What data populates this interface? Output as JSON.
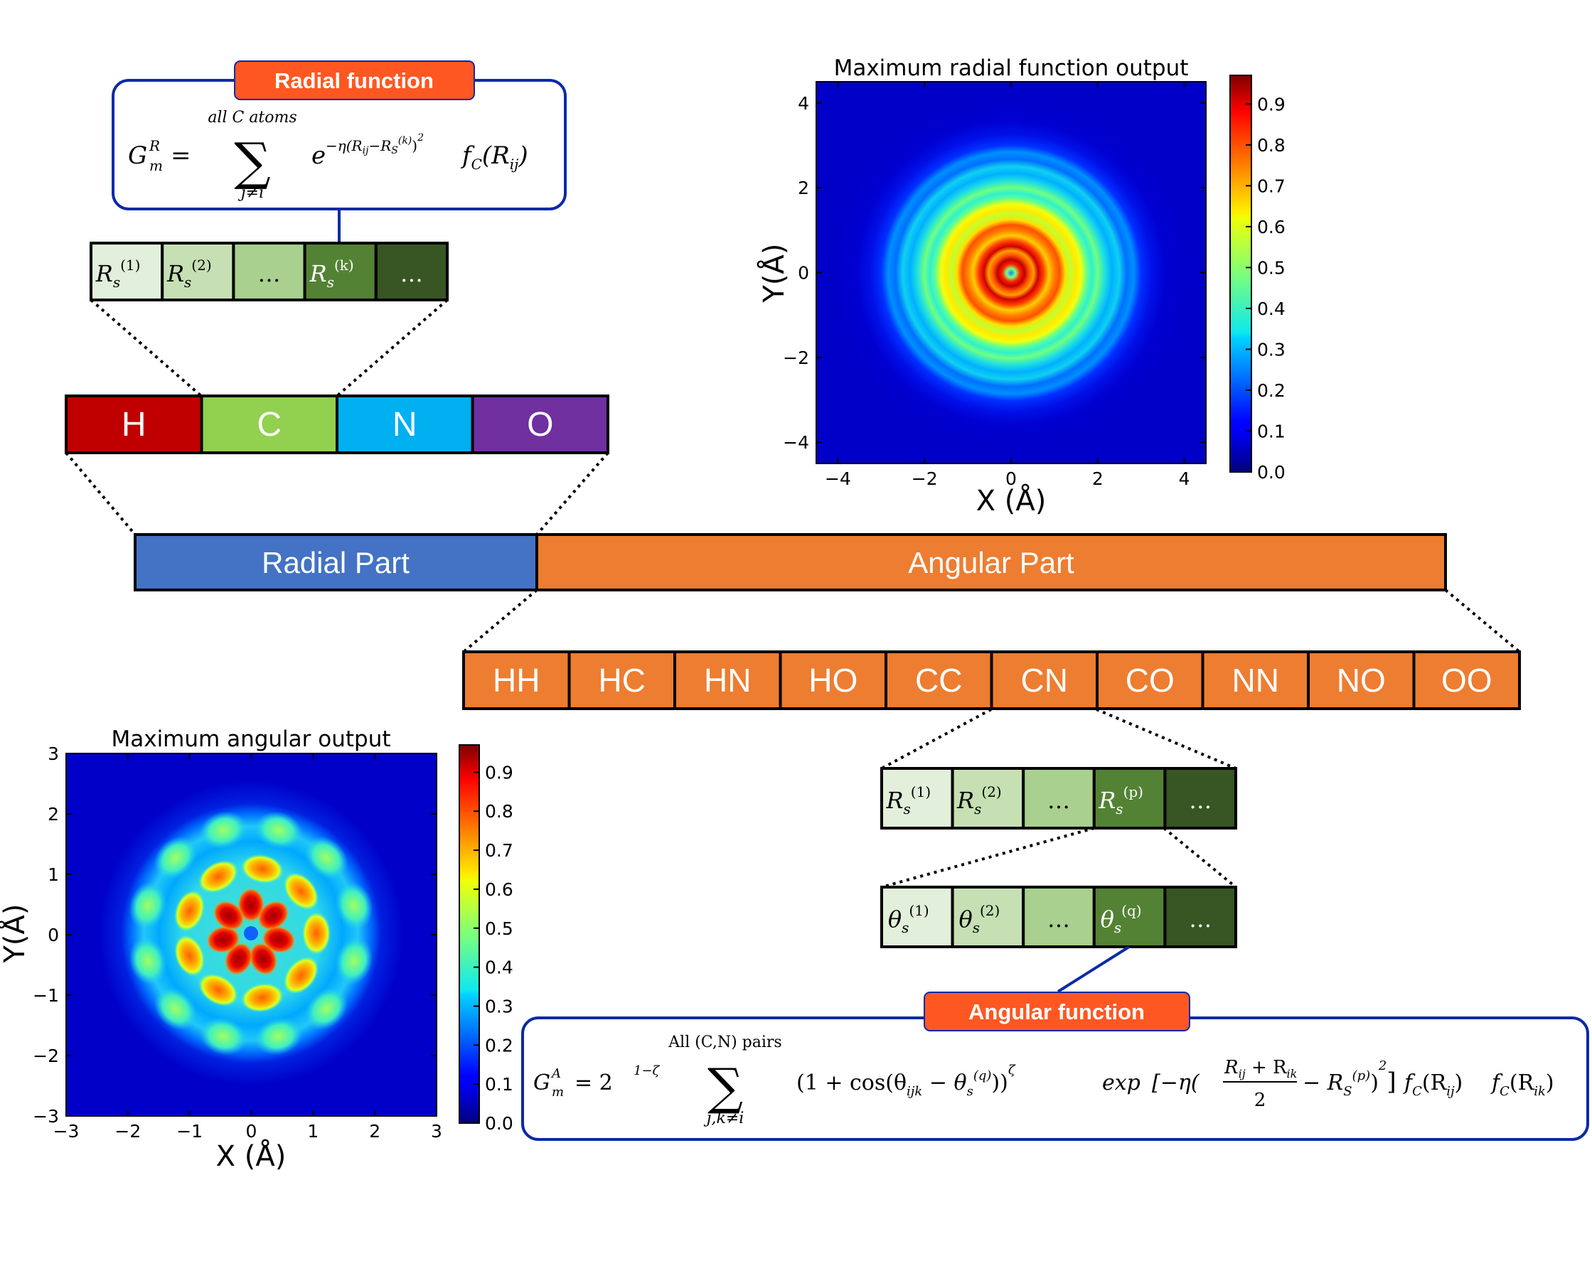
{
  "radial_box": {
    "title": "Radial function",
    "lhs": "G",
    "lhs_sup": "R",
    "lhs_sub": "m",
    "sum_top": "all C atoms",
    "sum_bottom": "j≠i",
    "exp_base": "e",
    "exp_power": "−η(R",
    "exp_rij": "ij",
    "exp_minus": "−R",
    "exp_rs_sub": "S",
    "exp_rs_sup": "(k)",
    "exp_sq": "2",
    "fc": "f",
    "fc_sub": "C",
    "fc_arg": "(R",
    "fc_arg_sub": "ij",
    "fc_close": ")"
  },
  "radial_rs_cells": [
    {
      "base": "R",
      "sub": "s",
      "sup": "(1)"
    },
    {
      "base": "R",
      "sub": "s",
      "sup": "(2)"
    },
    {
      "base": "…"
    },
    {
      "base": "R",
      "sub": "s",
      "sup": "(k)"
    },
    {
      "base": "…"
    }
  ],
  "elements": [
    {
      "label": "H",
      "color": "#c00000"
    },
    {
      "label": "C",
      "color": "#92d050"
    },
    {
      "label": "N",
      "color": "#00b0f0"
    },
    {
      "label": "O",
      "color": "#7030a0"
    }
  ],
  "parts": {
    "radial": "Radial Part",
    "angular": "Angular Part",
    "radial_color": "#4472c4",
    "angular_color": "#ed7d31"
  },
  "pairs": [
    "HH",
    "HC",
    "HN",
    "HO",
    "CC",
    "CN",
    "CO",
    "NN",
    "NO",
    "OO"
  ],
  "angular_rs_cells": [
    {
      "base": "R",
      "sub": "s",
      "sup": "(1)"
    },
    {
      "base": "R",
      "sub": "s",
      "sup": "(2)"
    },
    {
      "base": "…"
    },
    {
      "base": "R",
      "sub": "s",
      "sup": "(p)"
    },
    {
      "base": "…"
    }
  ],
  "theta_cells": [
    {
      "base": "θ",
      "sub": "s",
      "sup": "(1)"
    },
    {
      "base": "θ",
      "sub": "s",
      "sup": "(2)"
    },
    {
      "base": "…"
    },
    {
      "base": "θ",
      "sub": "s",
      "sup": "(q)"
    },
    {
      "base": "…"
    }
  ],
  "green_shades": [
    "#e2efda",
    "#c6e0b4",
    "#a9d08e",
    "#548235",
    "#375623"
  ],
  "angular_box": {
    "title": "Angular function",
    "lhs": "G",
    "lhs_sup": "A",
    "lhs_sub": "m",
    "eq": "= 2",
    "pow": "1−ζ",
    "sum_top": "All (C,N) pairs",
    "sum_bottom": "j,k≠i",
    "term1": "(1 + cos(θ",
    "term1_sub": "ijk",
    "term1_minus": " − θ",
    "term1_sub2": "s",
    "term1_sup2": "(q)",
    "term1_close": "))",
    "term1_pow": "ζ",
    "exp_word": "exp",
    "bracket_open": "[−η(",
    "frac_num": "R",
    "frac_num_sub1": "ij",
    "frac_num_plus": " + R",
    "frac_num_sub2": "ik",
    "frac_den": "2",
    "minus_rs": "− R",
    "minus_rs_sub": "S",
    "minus_rs_sup": "(p)",
    "paren_close": ")",
    "sq": "2",
    "bracket_close": "]",
    "fc1": "f",
    "fc1_sub": "C",
    "fc1_arg": "(R",
    "fc1_arg_sub": "ij",
    "fc1_close": ")",
    "fc2": "f",
    "fc2_sub": "C",
    "fc2_arg": "(R",
    "fc2_arg_sub": "ik",
    "fc2_close": ")"
  },
  "title_color": "#ff5722",
  "box_border_color": "#0b2aa6",
  "chart_data": [
    {
      "type": "heatmap",
      "title": "Maximum radial function output",
      "xlabel": "X (Å)",
      "ylabel": "Y(Å)",
      "xlim": [
        -4.5,
        4.5
      ],
      "ylim": [
        -4.5,
        4.5
      ],
      "xticks": [
        -4,
        -2,
        0,
        2,
        4
      ],
      "yticks": [
        -4,
        -2,
        0,
        2,
        4
      ],
      "xtick_labels": [
        "−4",
        "−2",
        "0",
        "2",
        "4"
      ],
      "ytick_labels": [
        "−4",
        "−2",
        "0",
        "2",
        "4"
      ],
      "colorbar_ticks": [
        0.0,
        0.1,
        0.2,
        0.3,
        0.4,
        0.5,
        0.6,
        0.7,
        0.8,
        0.9
      ],
      "colorbar_labels": [
        "0.0",
        "0.1",
        "0.2",
        "0.3",
        "0.4",
        "0.5",
        "0.6",
        "0.7",
        "0.8",
        "0.9"
      ],
      "colormap": "jet",
      "vmin": 0.0,
      "vmax": 0.97
    },
    {
      "type": "heatmap",
      "title": "Maximum angular output",
      "xlabel": "X (Å)",
      "ylabel": "Y(Å)",
      "xlim": [
        -3,
        3
      ],
      "ylim": [
        -3,
        3
      ],
      "xticks": [
        -3,
        -2,
        -1,
        0,
        1,
        2,
        3
      ],
      "yticks": [
        -3,
        -2,
        -1,
        0,
        1,
        2,
        3
      ],
      "xtick_labels": [
        "−3",
        "−2",
        "−1",
        "0",
        "1",
        "2",
        "3"
      ],
      "ytick_labels": [
        "−3",
        "−2",
        "−1",
        "0",
        "1",
        "2",
        "3"
      ],
      "colorbar_ticks": [
        0.0,
        0.1,
        0.2,
        0.3,
        0.4,
        0.5,
        0.6,
        0.7,
        0.8,
        0.9
      ],
      "colorbar_labels": [
        "0.0",
        "0.1",
        "0.2",
        "0.3",
        "0.4",
        "0.5",
        "0.6",
        "0.7",
        "0.8",
        "0.9"
      ],
      "colormap": "jet",
      "vmin": 0.0,
      "vmax": 0.97
    }
  ]
}
